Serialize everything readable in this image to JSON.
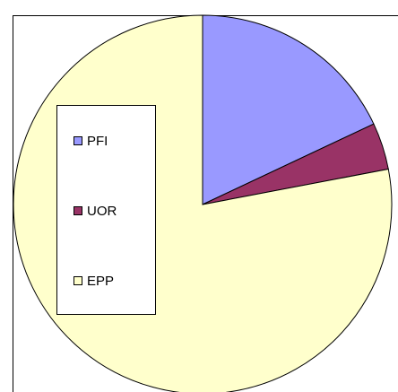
{
  "chart_data": {
    "type": "pie",
    "categories": [
      "PFI",
      "UOR",
      "EPP"
    ],
    "values": [
      18,
      4,
      78
    ],
    "colors": [
      "#9999ff",
      "#993366",
      "#ffffcc"
    ],
    "start_angle": 0,
    "direction": "clockwise",
    "legend": "left"
  }
}
